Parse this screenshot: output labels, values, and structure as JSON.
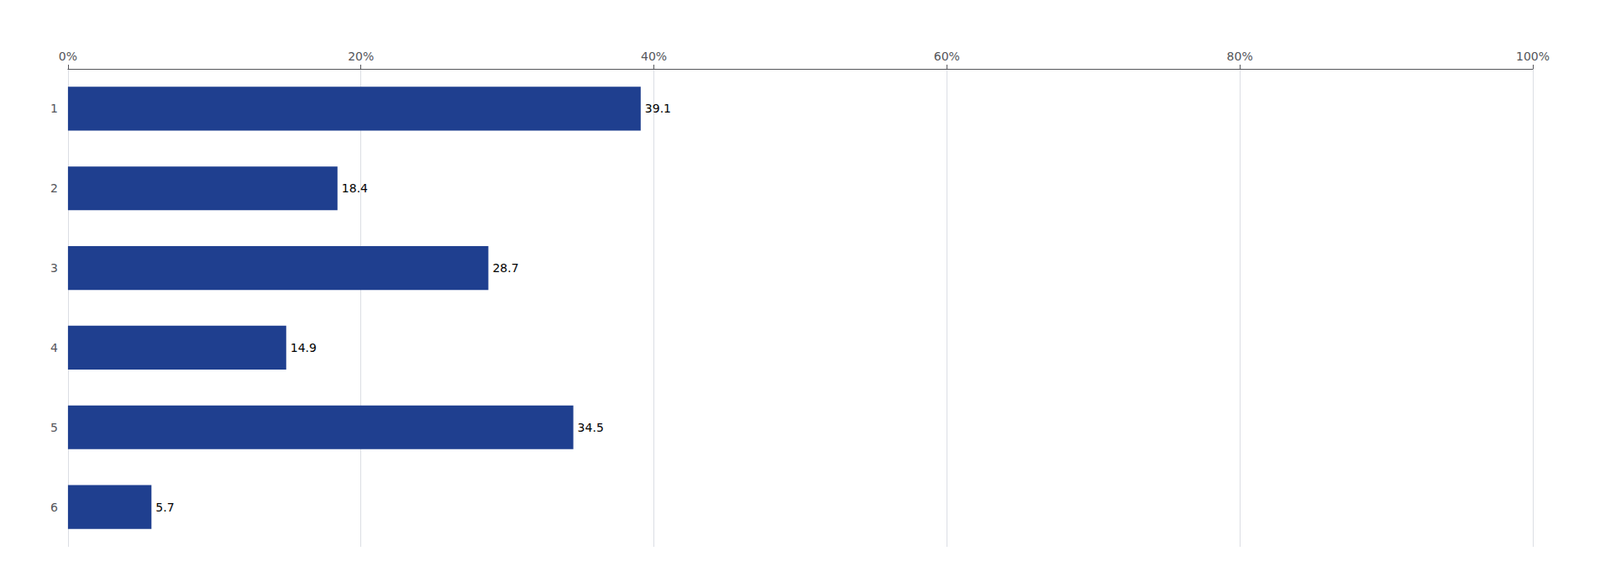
{
  "chart_data": {
    "type": "bar",
    "orientation": "horizontal",
    "categories": [
      "1",
      "2",
      "3",
      "4",
      "5",
      "6"
    ],
    "values": [
      39.1,
      18.4,
      28.7,
      14.9,
      34.5,
      5.7
    ],
    "color": "#1F3F8F",
    "xlim": [
      0,
      100
    ],
    "xticks": [
      {
        "value": 0,
        "label": "0%"
      },
      {
        "value": 20,
        "label": "20%"
      },
      {
        "value": 40,
        "label": "40%"
      },
      {
        "value": 60,
        "label": "60%"
      },
      {
        "value": 80,
        "label": "80%"
      },
      {
        "value": 100,
        "label": "100%"
      }
    ],
    "grid": true,
    "data_labels": true
  }
}
